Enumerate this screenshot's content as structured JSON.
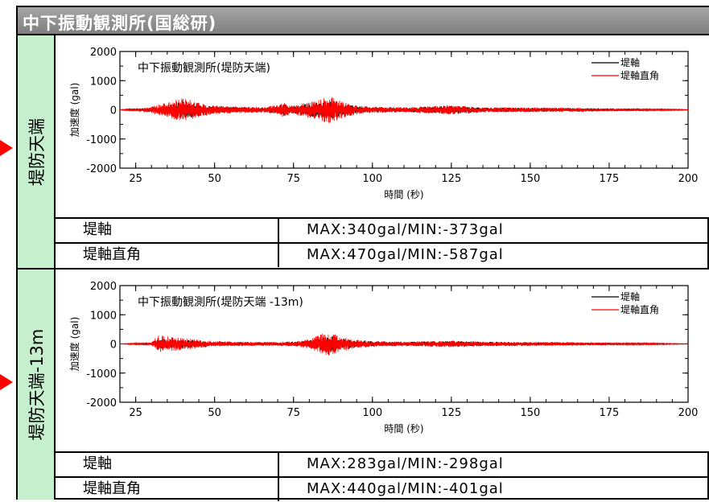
{
  "header": {
    "title": "中下振動観測所(国総研)"
  },
  "colors": {
    "header_bg": "#8c8c8c",
    "side_bg": "#c6efce",
    "arrow": "#ff0000",
    "series_axis": "#000000",
    "series_perp": "#ff0000"
  },
  "panels": [
    {
      "side_label": "堤防天端",
      "rows": [
        {
          "label": "堤軸",
          "value": "MAX:340gal/MIN:-373gal"
        },
        {
          "label": "堤軸直角",
          "value": "MAX:470gal/MIN:-587gal"
        }
      ]
    },
    {
      "side_label": "堤防天端-13m",
      "rows": [
        {
          "label": "堤軸",
          "value": "MAX:283gal/MIN:-298gal"
        },
        {
          "label": "堤軸直角",
          "value": "MAX:440gal/MIN:-401gal"
        }
      ]
    }
  ],
  "chart_data": [
    {
      "type": "line",
      "title": "中下振動観測所(堤防天端)",
      "xlabel": "時間 (秒)",
      "ylabel": "加速度 (gal)",
      "xlim": [
        20,
        200
      ],
      "ylim": [
        -2000,
        2000
      ],
      "xticks": [
        25,
        50,
        75,
        100,
        125,
        150,
        175,
        200
      ],
      "yticks": [
        2000,
        1000,
        0,
        -1000,
        -2000
      ],
      "legend_position": "top-right",
      "series": [
        {
          "name": "堤軸",
          "color": "#000000",
          "envelope": [
            [
              20,
              5
            ],
            [
              25,
              40
            ],
            [
              30,
              80
            ],
            [
              33,
              120
            ],
            [
              37,
              220
            ],
            [
              40,
              340
            ],
            [
              43,
              260
            ],
            [
              46,
              200
            ],
            [
              50,
              120
            ],
            [
              55,
              100
            ],
            [
              60,
              90
            ],
            [
              65,
              80
            ],
            [
              70,
              120
            ],
            [
              72,
              220
            ],
            [
              74,
              120
            ],
            [
              78,
              180
            ],
            [
              82,
              260
            ],
            [
              86,
              320
            ],
            [
              88,
              300
            ],
            [
              91,
              220
            ],
            [
              95,
              120
            ],
            [
              100,
              90
            ],
            [
              110,
              70
            ],
            [
              125,
              150
            ],
            [
              135,
              80
            ],
            [
              150,
              70
            ],
            [
              165,
              60
            ],
            [
              180,
              40
            ],
            [
              190,
              25
            ],
            [
              200,
              10
            ]
          ]
        },
        {
          "name": "堤軸直角",
          "color": "#ff0000",
          "envelope": [
            [
              20,
              5
            ],
            [
              25,
              60
            ],
            [
              30,
              110
            ],
            [
              33,
              200
            ],
            [
              37,
              330
            ],
            [
              40,
              420
            ],
            [
              43,
              320
            ],
            [
              46,
              230
            ],
            [
              50,
              150
            ],
            [
              55,
              120
            ],
            [
              60,
              110
            ],
            [
              65,
              100
            ],
            [
              70,
              160
            ],
            [
              72,
              280
            ],
            [
              74,
              140
            ],
            [
              78,
              220
            ],
            [
              82,
              330
            ],
            [
              86,
              470
            ],
            [
              88,
              400
            ],
            [
              91,
              280
            ],
            [
              95,
              150
            ],
            [
              100,
              110
            ],
            [
              110,
              90
            ],
            [
              125,
              160
            ],
            [
              135,
              90
            ],
            [
              150,
              80
            ],
            [
              165,
              70
            ],
            [
              180,
              50
            ],
            [
              190,
              30
            ],
            [
              200,
              10
            ]
          ]
        }
      ]
    },
    {
      "type": "line",
      "title": "中下振動観測所(堤防天端 -13m)",
      "xlabel": "時間 (秒)",
      "ylabel": "加速度 (gal)",
      "xlim": [
        20,
        200
      ],
      "ylim": [
        -2000,
        2000
      ],
      "xticks": [
        25,
        50,
        75,
        100,
        125,
        150,
        175,
        200
      ],
      "yticks": [
        2000,
        1000,
        0,
        -1000,
        -2000
      ],
      "legend_position": "top-right",
      "series": [
        {
          "name": "堤軸",
          "color": "#000000",
          "envelope": [
            [
              20,
              5
            ],
            [
              25,
              20
            ],
            [
              30,
              40
            ],
            [
              32,
              180
            ],
            [
              35,
              160
            ],
            [
              40,
              140
            ],
            [
              45,
              110
            ],
            [
              50,
              80
            ],
            [
              55,
              70
            ],
            [
              60,
              60
            ],
            [
              70,
              60
            ],
            [
              75,
              70
            ],
            [
              80,
              120
            ],
            [
              84,
              240
            ],
            [
              87,
              280
            ],
            [
              90,
              200
            ],
            [
              95,
              120
            ],
            [
              100,
              90
            ],
            [
              110,
              70
            ],
            [
              125,
              100
            ],
            [
              135,
              70
            ],
            [
              150,
              60
            ],
            [
              165,
              50
            ],
            [
              180,
              30
            ],
            [
              190,
              20
            ],
            [
              200,
              8
            ]
          ]
        },
        {
          "name": "堤軸直角",
          "color": "#ff0000",
          "envelope": [
            [
              20,
              5
            ],
            [
              25,
              30
            ],
            [
              30,
              50
            ],
            [
              32,
              300
            ],
            [
              35,
              260
            ],
            [
              40,
              200
            ],
            [
              45,
              150
            ],
            [
              50,
              100
            ],
            [
              55,
              80
            ],
            [
              60,
              70
            ],
            [
              70,
              70
            ],
            [
              75,
              90
            ],
            [
              80,
              170
            ],
            [
              84,
              360
            ],
            [
              86,
              440
            ],
            [
              88,
              350
            ],
            [
              90,
              250
            ],
            [
              95,
              150
            ],
            [
              100,
              100
            ],
            [
              110,
              80
            ],
            [
              125,
              110
            ],
            [
              135,
              80
            ],
            [
              150,
              70
            ],
            [
              165,
              60
            ],
            [
              180,
              35
            ],
            [
              190,
              22
            ],
            [
              200,
              8
            ]
          ]
        }
      ]
    }
  ]
}
